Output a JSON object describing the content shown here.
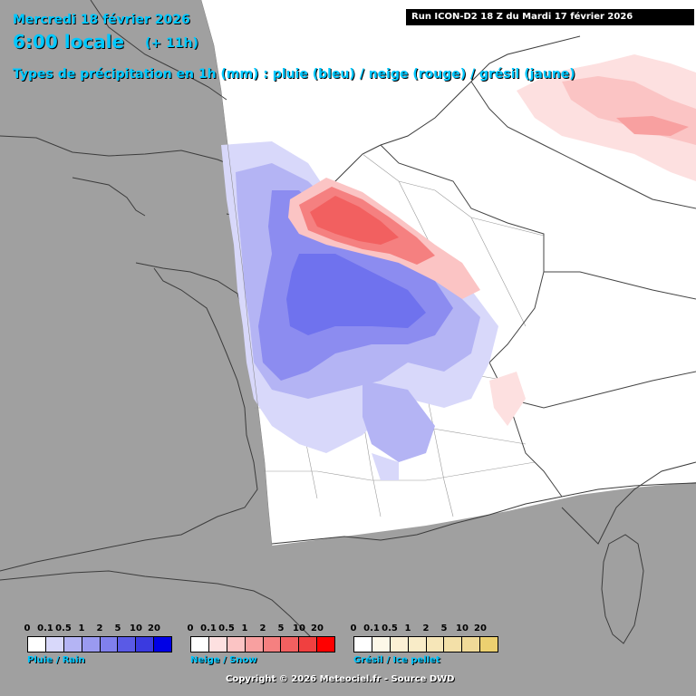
{
  "header": {
    "date": "Mercredi 18 février 2026",
    "hour": "6:00 locale",
    "lead": "(+ 11h)",
    "subtitle": "Types de précipitation en 1h (mm) : pluie (bleu) / neige (rouge) / grésil (jaune)",
    "run": "Run ICON-D2 18 Z du Mardi 17 février 2026"
  },
  "colors": {
    "sea_land_outside": "#a0a0a0",
    "domain": "#ffffff",
    "text_accent": "#00c8ff",
    "border": "#444444",
    "rain_dominant": "#6f72ee",
    "snow_dominant": "#ff6a6a"
  },
  "legends": [
    {
      "id": "rain",
      "label": "Pluie / Rain",
      "ticks": [
        "0",
        "0.1",
        "0.5",
        "1",
        "2",
        "5",
        "10",
        "20"
      ],
      "colors": [
        "#ffffff",
        "#d8d8fa",
        "#b4b4f4",
        "#9a9af0",
        "#8080ec",
        "#5a5ae6",
        "#3a3ae0",
        "#0000e6"
      ]
    },
    {
      "id": "snow",
      "label": "Neige / Snow",
      "ticks": [
        "0",
        "0.1",
        "0.5",
        "1",
        "2",
        "5",
        "10",
        "20"
      ],
      "colors": [
        "#ffffff",
        "#fde0e0",
        "#fbc4c4",
        "#f8a0a0",
        "#f58080",
        "#f26060",
        "#f04040",
        "#ff0000"
      ]
    },
    {
      "id": "sleet",
      "label": "Grésil / Ice pellet",
      "ticks": [
        "0",
        "0.1",
        "0.5",
        "1",
        "2",
        "5",
        "10",
        "20"
      ],
      "colors": [
        "#ffffff",
        "#fdf8e8",
        "#fbf0d4",
        "#f9ecc8",
        "#f6e6b8",
        "#f3e0a8",
        "#f0da98",
        "#ecd070"
      ]
    }
  ],
  "footer": {
    "copyright": "Copyright © 2026 Meteociel.fr - Source DWD"
  }
}
